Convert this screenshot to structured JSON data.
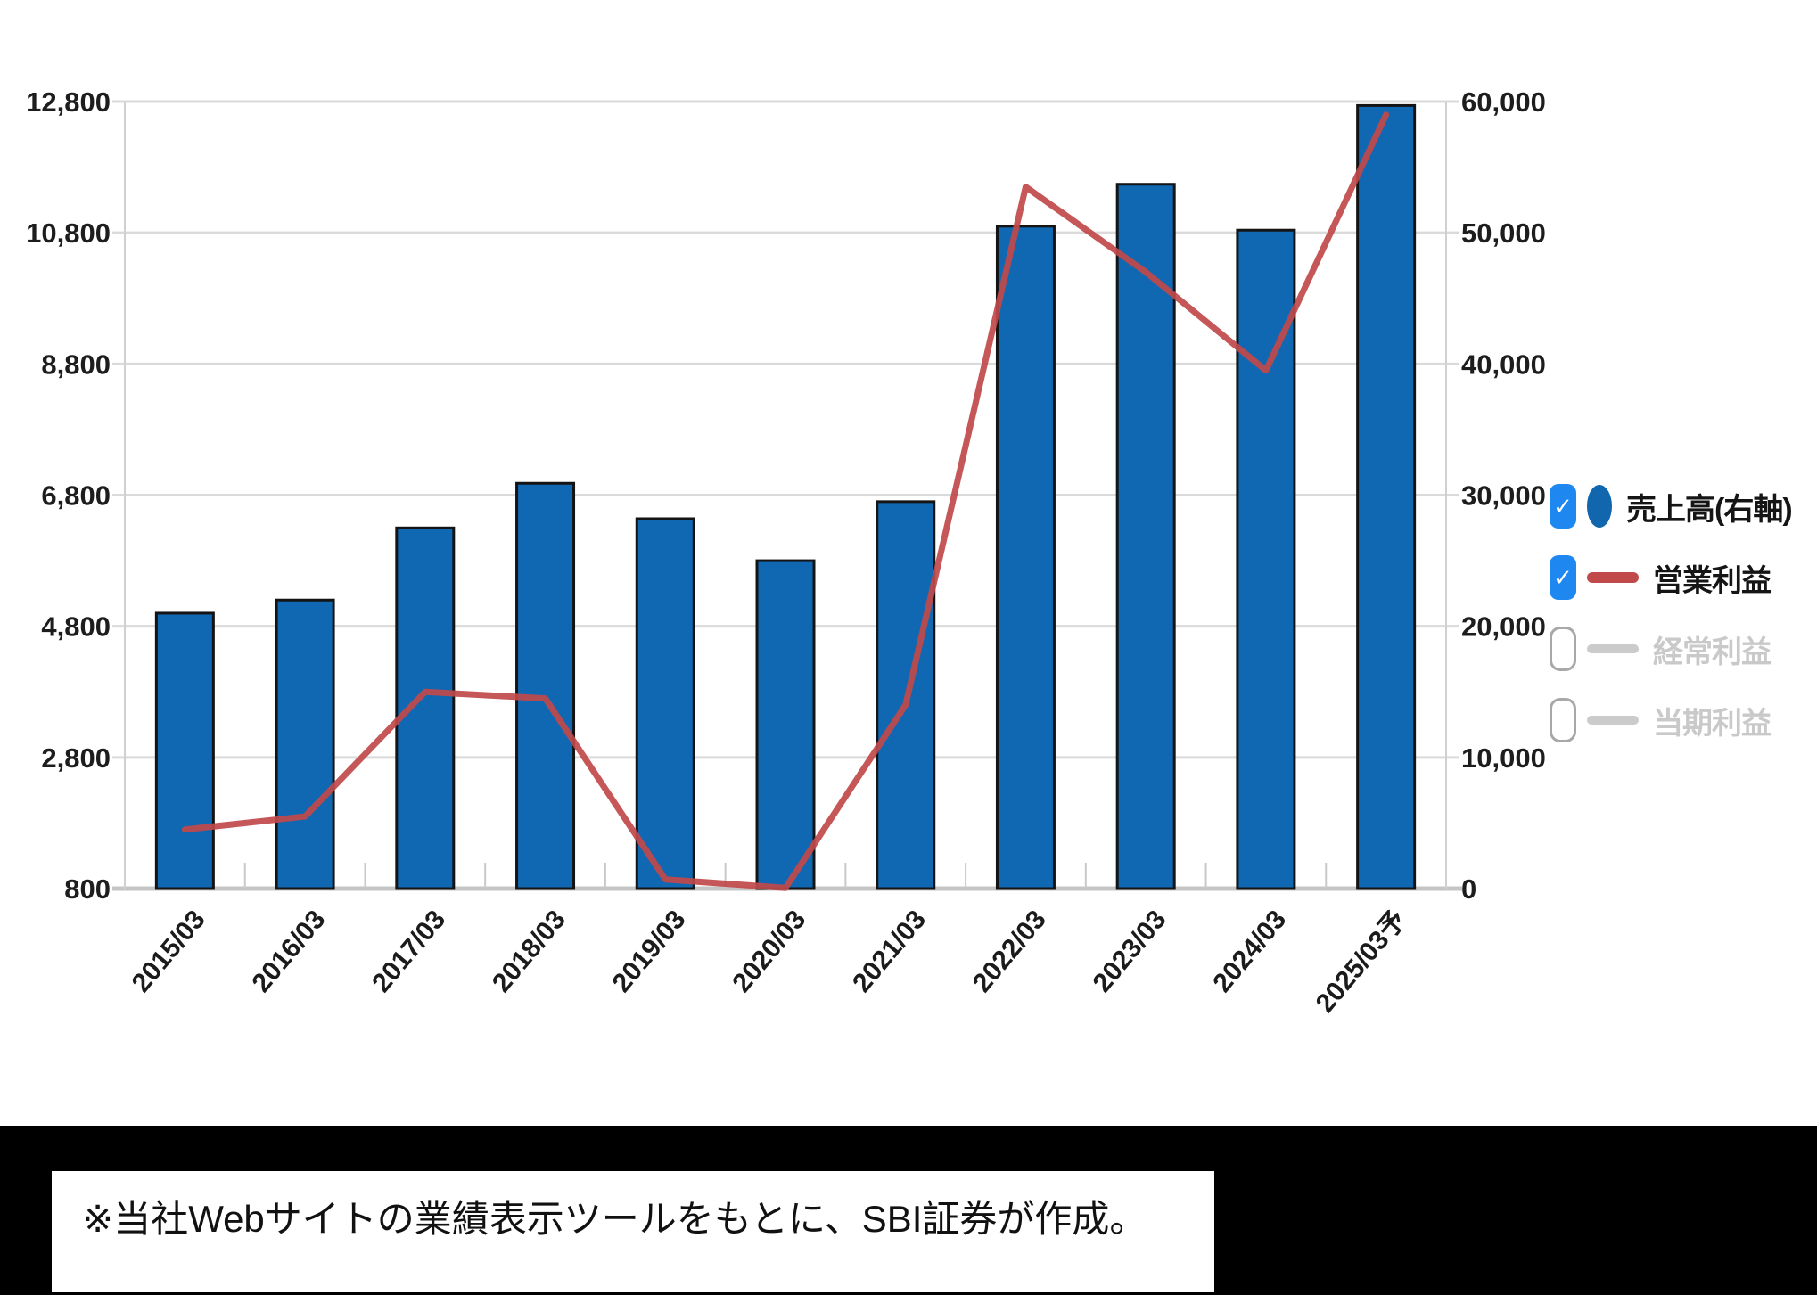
{
  "page": {
    "background": "#ffffff"
  },
  "chart_data": {
    "type": "bar+line combo",
    "title": "",
    "categories": [
      "2015/03",
      "2016/03",
      "2017/03",
      "2018/03",
      "2019/03",
      "2020/03",
      "2021/03",
      "2022/03",
      "2023/03",
      "2024/03",
      "2025/03予"
    ],
    "series": [
      {
        "name": "売上高(右軸)",
        "type": "bar",
        "axis": "right",
        "color": "#1068b2",
        "outline": "#141414",
        "values": [
          21000,
          22000,
          27500,
          30900,
          28200,
          25000,
          29500,
          50500,
          53700,
          50200,
          59700
        ]
      },
      {
        "name": "営業利益",
        "type": "line",
        "axis": "left",
        "color": "#c0494a",
        "values": [
          1700,
          1900,
          3800,
          3700,
          940,
          810,
          3600,
          11500,
          10200,
          8700,
          12600
        ]
      }
    ],
    "left_axis": {
      "min": 800,
      "max": 12800,
      "ticks": [
        "12,800",
        "10,800",
        "8,800",
        "6,800",
        "4,800",
        "2,800",
        "800"
      ]
    },
    "right_axis": {
      "min": 0,
      "max": 60000,
      "ticks": [
        "60,000",
        "50,000",
        "40,000",
        "30,000",
        "20,000",
        "10,000",
        "0"
      ]
    },
    "grid": true,
    "legend_position": "right"
  },
  "legend": {
    "items": [
      {
        "label": "売上高(右軸)",
        "checked": true,
        "marker": "circle",
        "marker_color": "#1166ad"
      },
      {
        "label": "営業利益",
        "checked": true,
        "marker": "redline",
        "marker_color": "#c0494a"
      },
      {
        "label": "経常利益",
        "checked": false,
        "marker": "grayline",
        "marker_color": "#cbcbcb"
      },
      {
        "label": "当期利益",
        "checked": false,
        "marker": "grayline",
        "marker_color": "#cbcbcb"
      }
    ]
  },
  "icons": {
    "checkbox_check": "✓"
  },
  "note": {
    "text": "※当社Webサイトの業績表示ツールをもとに、SBI証券が作成。"
  },
  "colors": {
    "bar_fill": "#1068b2",
    "bar_outline": "#141414",
    "line_red": "#c0494a",
    "grid": "#dadada",
    "baseline": "#c5c5c5",
    "plot_border": "#d0d0d0",
    "axis_text": "#1d1d1d",
    "checkbox_blue": "#1e88f0",
    "inactive_gray": "#c9c9c9",
    "band_black": "#000000"
  }
}
